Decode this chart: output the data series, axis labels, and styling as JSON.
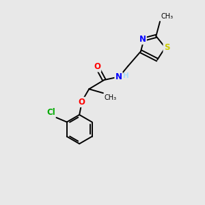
{
  "background_color": "#e8e8e8",
  "bond_color": "#000000",
  "atom_colors": {
    "O": "#ff0000",
    "N": "#0000ff",
    "S": "#cccc00",
    "Cl": "#00aa00",
    "H": "#aaddff"
  },
  "figsize": [
    3.0,
    3.0
  ],
  "dpi": 100,
  "lw": 1.4,
  "fs": 8.5
}
